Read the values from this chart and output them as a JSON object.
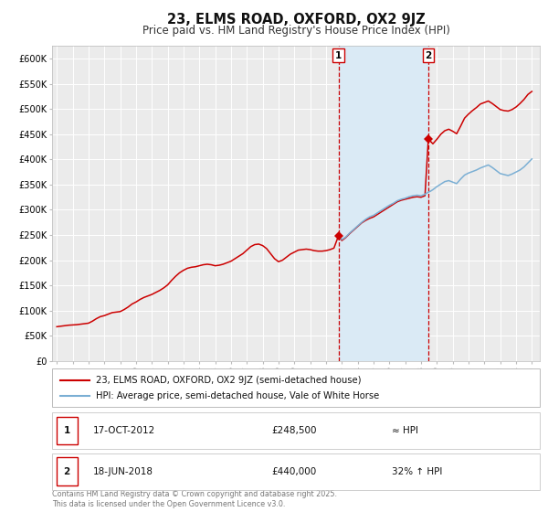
{
  "title": "23, ELMS ROAD, OXFORD, OX2 9JZ",
  "subtitle": "Price paid vs. HM Land Registry's House Price Index (HPI)",
  "title_fontsize": 11,
  "subtitle_fontsize": 9,
  "background_color": "#ffffff",
  "plot_bg_color": "#ebebeb",
  "shade_color": "#daeaf5",
  "grid_color": "#ffffff",
  "red_line_color": "#cc0000",
  "blue_line_color": "#7bafd4",
  "marker_color": "#cc0000",
  "vline_color": "#cc0000",
  "yticks": [
    0,
    50000,
    100000,
    150000,
    200000,
    250000,
    300000,
    350000,
    400000,
    450000,
    500000,
    550000,
    600000
  ],
  "ytick_labels": [
    "£0",
    "£50K",
    "£100K",
    "£150K",
    "£200K",
    "£250K",
    "£300K",
    "£350K",
    "£400K",
    "£450K",
    "£500K",
    "£550K",
    "£600K"
  ],
  "ylim": [
    0,
    625000
  ],
  "xlim_start": 1994.7,
  "xlim_end": 2025.5,
  "xticks": [
    1995,
    1996,
    1997,
    1998,
    1999,
    2000,
    2001,
    2002,
    2003,
    2004,
    2005,
    2006,
    2007,
    2008,
    2009,
    2010,
    2011,
    2012,
    2013,
    2014,
    2015,
    2016,
    2017,
    2018,
    2019,
    2020,
    2021,
    2022,
    2023,
    2024,
    2025
  ],
  "vline1_x": 2012.79,
  "vline2_x": 2018.46,
  "shade_x1": 2012.79,
  "shade_x2": 2018.46,
  "marker1_x": 2012.79,
  "marker1_y": 248500,
  "marker2_x": 2018.46,
  "marker2_y": 440000,
  "legend_label_red": "23, ELMS ROAD, OXFORD, OX2 9JZ (semi-detached house)",
  "legend_label_blue": "HPI: Average price, semi-detached house, Vale of White Horse",
  "table_data": [
    {
      "idx": "1",
      "date": "17-OCT-2012",
      "price": "£248,500",
      "hpi": "≈ HPI"
    },
    {
      "idx": "2",
      "date": "18-JUN-2018",
      "price": "£440,000",
      "hpi": "32% ↑ HPI"
    }
  ],
  "footer": "Contains HM Land Registry data © Crown copyright and database right 2025.\nThis data is licensed under the Open Government Licence v3.0.",
  "red_hpi_data": [
    [
      1995.0,
      68000
    ],
    [
      1995.25,
      69000
    ],
    [
      1995.5,
      70000
    ],
    [
      1995.75,
      71000
    ],
    [
      1996.0,
      71500
    ],
    [
      1996.25,
      72000
    ],
    [
      1996.5,
      73000
    ],
    [
      1996.75,
      74000
    ],
    [
      1997.0,
      75000
    ],
    [
      1997.25,
      79000
    ],
    [
      1997.5,
      84000
    ],
    [
      1997.75,
      88000
    ],
    [
      1998.0,
      90000
    ],
    [
      1998.25,
      93000
    ],
    [
      1998.5,
      96000
    ],
    [
      1998.75,
      97000
    ],
    [
      1999.0,
      98000
    ],
    [
      1999.25,
      102000
    ],
    [
      1999.5,
      107000
    ],
    [
      1999.75,
      113000
    ],
    [
      2000.0,
      117000
    ],
    [
      2000.25,
      122000
    ],
    [
      2000.5,
      126000
    ],
    [
      2000.75,
      129000
    ],
    [
      2001.0,
      132000
    ],
    [
      2001.25,
      136000
    ],
    [
      2001.5,
      140000
    ],
    [
      2001.75,
      145000
    ],
    [
      2002.0,
      151000
    ],
    [
      2002.25,
      160000
    ],
    [
      2002.5,
      168000
    ],
    [
      2002.75,
      175000
    ],
    [
      2003.0,
      180000
    ],
    [
      2003.25,
      184000
    ],
    [
      2003.5,
      186000
    ],
    [
      2003.75,
      187000
    ],
    [
      2004.0,
      189000
    ],
    [
      2004.25,
      191000
    ],
    [
      2004.5,
      192000
    ],
    [
      2004.75,
      191000
    ],
    [
      2005.0,
      189000
    ],
    [
      2005.25,
      190000
    ],
    [
      2005.5,
      192000
    ],
    [
      2005.75,
      195000
    ],
    [
      2006.0,
      198000
    ],
    [
      2006.25,
      203000
    ],
    [
      2006.5,
      208000
    ],
    [
      2006.75,
      213000
    ],
    [
      2007.0,
      220000
    ],
    [
      2007.25,
      227000
    ],
    [
      2007.5,
      231000
    ],
    [
      2007.75,
      232000
    ],
    [
      2008.0,
      229000
    ],
    [
      2008.25,
      223000
    ],
    [
      2008.5,
      213000
    ],
    [
      2008.75,
      203000
    ],
    [
      2009.0,
      197000
    ],
    [
      2009.25,
      200000
    ],
    [
      2009.5,
      206000
    ],
    [
      2009.75,
      212000
    ],
    [
      2010.0,
      216000
    ],
    [
      2010.25,
      220000
    ],
    [
      2010.5,
      221000
    ],
    [
      2010.75,
      222000
    ],
    [
      2011.0,
      221000
    ],
    [
      2011.25,
      219000
    ],
    [
      2011.5,
      218000
    ],
    [
      2011.75,
      218000
    ],
    [
      2012.0,
      219000
    ],
    [
      2012.25,
      221000
    ],
    [
      2012.5,
      224000
    ],
    [
      2012.79,
      248500
    ],
    [
      2013.0,
      239000
    ],
    [
      2013.25,
      245000
    ],
    [
      2013.5,
      253000
    ],
    [
      2013.75,
      260000
    ],
    [
      2014.0,
      267000
    ],
    [
      2014.25,
      274000
    ],
    [
      2014.5,
      279000
    ],
    [
      2014.75,
      283000
    ],
    [
      2015.0,
      286000
    ],
    [
      2015.25,
      291000
    ],
    [
      2015.5,
      296000
    ],
    [
      2015.75,
      301000
    ],
    [
      2016.0,
      306000
    ],
    [
      2016.25,
      311000
    ],
    [
      2016.5,
      316000
    ],
    [
      2016.75,
      319000
    ],
    [
      2017.0,
      321000
    ],
    [
      2017.25,
      323000
    ],
    [
      2017.5,
      325000
    ],
    [
      2017.75,
      326000
    ],
    [
      2018.0,
      325000
    ],
    [
      2018.25,
      328000
    ],
    [
      2018.46,
      440000
    ],
    [
      2018.6,
      436000
    ],
    [
      2018.75,
      431000
    ],
    [
      2019.0,
      440000
    ],
    [
      2019.25,
      450000
    ],
    [
      2019.5,
      457000
    ],
    [
      2019.75,
      460000
    ],
    [
      2020.0,
      456000
    ],
    [
      2020.25,
      451000
    ],
    [
      2020.5,
      466000
    ],
    [
      2020.75,
      482000
    ],
    [
      2021.0,
      490000
    ],
    [
      2021.25,
      497000
    ],
    [
      2021.5,
      503000
    ],
    [
      2021.75,
      510000
    ],
    [
      2022.0,
      513000
    ],
    [
      2022.25,
      516000
    ],
    [
      2022.5,
      511000
    ],
    [
      2022.75,
      505000
    ],
    [
      2023.0,
      499000
    ],
    [
      2023.25,
      497000
    ],
    [
      2023.5,
      496000
    ],
    [
      2023.75,
      499000
    ],
    [
      2024.0,
      504000
    ],
    [
      2024.25,
      511000
    ],
    [
      2024.5,
      519000
    ],
    [
      2024.75,
      529000
    ],
    [
      2025.0,
      535000
    ]
  ],
  "blue_hpi_data": [
    [
      2012.79,
      248500
    ],
    [
      2013.0,
      241000
    ],
    [
      2013.25,
      246000
    ],
    [
      2013.5,
      254000
    ],
    [
      2013.75,
      261000
    ],
    [
      2014.0,
      268000
    ],
    [
      2014.25,
      275000
    ],
    [
      2014.5,
      281000
    ],
    [
      2014.75,
      286000
    ],
    [
      2015.0,
      289000
    ],
    [
      2015.25,
      294000
    ],
    [
      2015.5,
      299000
    ],
    [
      2015.75,
      304000
    ],
    [
      2016.0,
      309000
    ],
    [
      2016.25,
      313000
    ],
    [
      2016.5,
      318000
    ],
    [
      2016.75,
      321000
    ],
    [
      2017.0,
      323000
    ],
    [
      2017.25,
      326000
    ],
    [
      2017.5,
      328000
    ],
    [
      2017.75,
      329000
    ],
    [
      2018.0,
      328000
    ],
    [
      2018.25,
      331000
    ],
    [
      2018.46,
      335000
    ],
    [
      2018.6,
      337000
    ],
    [
      2018.75,
      340000
    ],
    [
      2019.0,
      346000
    ],
    [
      2019.25,
      351000
    ],
    [
      2019.5,
      356000
    ],
    [
      2019.75,
      358000
    ],
    [
      2020.0,
      355000
    ],
    [
      2020.25,
      352000
    ],
    [
      2020.5,
      361000
    ],
    [
      2020.75,
      369000
    ],
    [
      2021.0,
      373000
    ],
    [
      2021.25,
      376000
    ],
    [
      2021.5,
      379000
    ],
    [
      2021.75,
      383000
    ],
    [
      2022.0,
      386000
    ],
    [
      2022.25,
      389000
    ],
    [
      2022.5,
      384000
    ],
    [
      2022.75,
      378000
    ],
    [
      2023.0,
      372000
    ],
    [
      2023.25,
      370000
    ],
    [
      2023.5,
      368000
    ],
    [
      2023.75,
      371000
    ],
    [
      2024.0,
      375000
    ],
    [
      2024.25,
      379000
    ],
    [
      2024.5,
      385000
    ],
    [
      2024.75,
      393000
    ],
    [
      2025.0,
      401000
    ]
  ]
}
